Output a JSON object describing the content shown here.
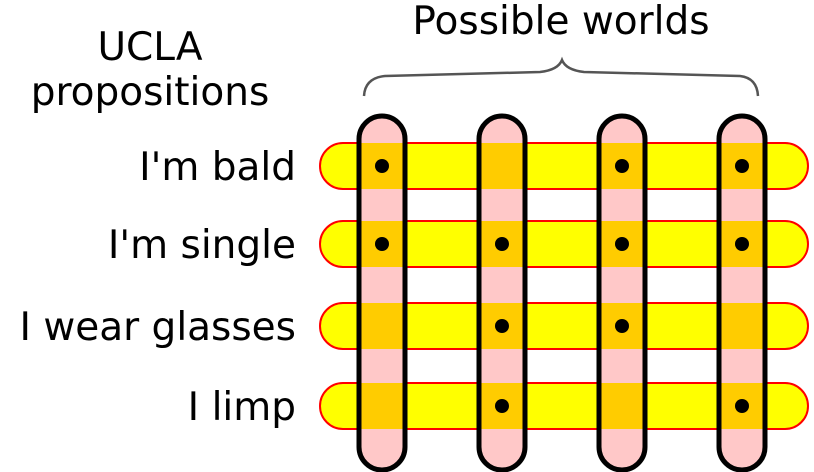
{
  "header": {
    "worlds_title": "Possible worlds",
    "props_title_line1": "UCLA",
    "props_title_line2": "propositions"
  },
  "propositions": [
    {
      "label": "I'm bald"
    },
    {
      "label": "I'm single"
    },
    {
      "label": "I wear glasses"
    },
    {
      "label": "I limp"
    }
  ],
  "worlds_count": 4,
  "membership": [
    [
      true,
      false,
      true,
      true
    ],
    [
      true,
      true,
      true,
      true
    ],
    [
      false,
      true,
      true,
      false
    ],
    [
      false,
      true,
      false,
      true
    ]
  ],
  "colors": {
    "proposition_fill": "#ffff00",
    "proposition_stroke": "#ff0000",
    "world_fill": "#ffc8c8",
    "world_stroke": "#000000",
    "overlap_fill": "#ffcc00",
    "dot": "#000000",
    "brace": "#555555"
  }
}
